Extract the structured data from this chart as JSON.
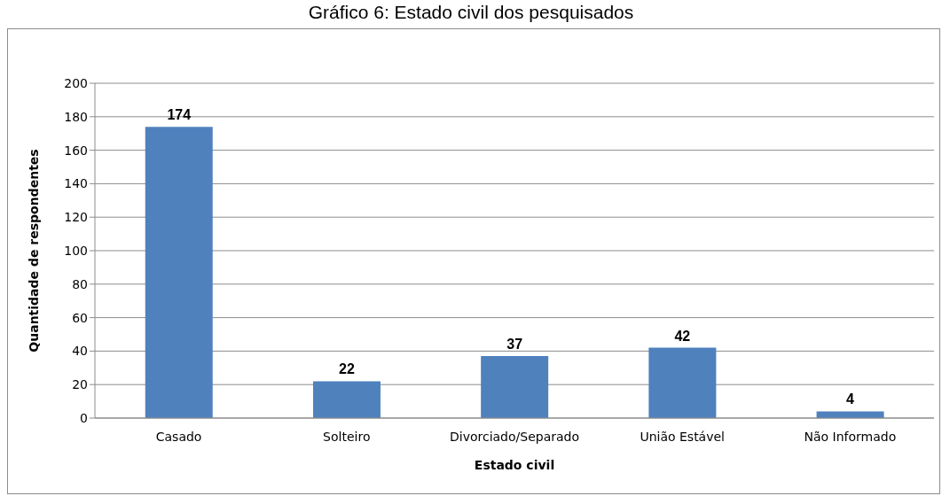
{
  "chart_data": {
    "type": "bar",
    "title": "Gráfico 6: Estado civil dos pesquisados",
    "xlabel": "Estado civil",
    "ylabel": "Quantidade de respondentes",
    "categories": [
      "Casado",
      "Solteiro",
      "Divorciado/Separado",
      "União Estável",
      "Não Informado"
    ],
    "values": [
      174,
      22,
      37,
      42,
      4
    ],
    "color": "#4f81bd",
    "ylim": [
      0,
      200
    ],
    "yticks": [
      0,
      20,
      40,
      60,
      80,
      100,
      120,
      140,
      160,
      180,
      200
    ],
    "grid": "y",
    "data_labels": true
  }
}
